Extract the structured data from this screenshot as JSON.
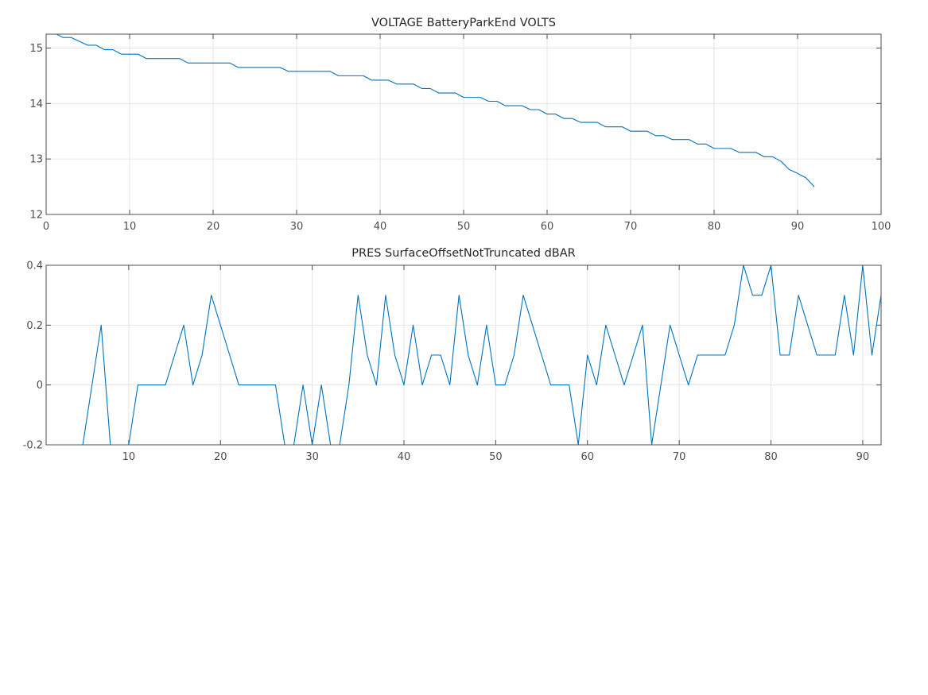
{
  "chart_data": [
    {
      "type": "line",
      "title": "VOLTAGE BatteryParkEnd VOLTS",
      "xlabel": "",
      "ylabel": "",
      "xlim": [
        0,
        100
      ],
      "ylim": [
        12,
        15.25
      ],
      "xticks": [
        0,
        10,
        20,
        30,
        40,
        50,
        60,
        70,
        80,
        90,
        100
      ],
      "yticks": [
        12,
        13,
        14,
        15
      ],
      "grid": true,
      "legend": "none",
      "color": "#0072bd",
      "series": [
        {
          "x": [
            1,
            2,
            3,
            4,
            5,
            6,
            7,
            8,
            9,
            10,
            11,
            12,
            13,
            14,
            15,
            16,
            17,
            18,
            19,
            20,
            21,
            22,
            23,
            24,
            25,
            26,
            27,
            28,
            29,
            30,
            31,
            32,
            33,
            34,
            35,
            36,
            37,
            38,
            39,
            40,
            41,
            42,
            43,
            44,
            45,
            46,
            47,
            48,
            49,
            50,
            51,
            52,
            53,
            54,
            55,
            56,
            57,
            58,
            59,
            60,
            61,
            62,
            63,
            64,
            65,
            66,
            67,
            68,
            69,
            70,
            71,
            72,
            73,
            74,
            75,
            76,
            77,
            78,
            79,
            80,
            81,
            82,
            83,
            84,
            85,
            86,
            87,
            88,
            89,
            90,
            91,
            92
          ],
          "values": [
            15.27,
            15.19,
            15.19,
            15.12,
            15.05,
            15.05,
            14.97,
            14.97,
            14.89,
            14.89,
            14.89,
            14.81,
            14.81,
            14.81,
            14.81,
            14.81,
            14.73,
            14.73,
            14.73,
            14.73,
            14.73,
            14.73,
            14.65,
            14.65,
            14.65,
            14.65,
            14.65,
            14.65,
            14.58,
            14.58,
            14.58,
            14.58,
            14.58,
            14.58,
            14.5,
            14.5,
            14.5,
            14.5,
            14.42,
            14.42,
            14.42,
            14.35,
            14.35,
            14.35,
            14.27,
            14.27,
            14.19,
            14.19,
            14.19,
            14.11,
            14.11,
            14.11,
            14.04,
            14.04,
            13.96,
            13.96,
            13.96,
            13.89,
            13.89,
            13.81,
            13.81,
            13.73,
            13.73,
            13.66,
            13.66,
            13.66,
            13.58,
            13.58,
            13.58,
            13.5,
            13.5,
            13.5,
            13.42,
            13.42,
            13.35,
            13.35,
            13.35,
            13.27,
            13.27,
            13.19,
            13.19,
            13.19,
            13.12,
            13.12,
            13.12,
            13.04,
            13.04,
            12.96,
            12.81,
            12.74,
            12.66,
            12.5
          ]
        }
      ]
    },
    {
      "type": "line",
      "title": "PRES SurfaceOffsetNotTruncated dBAR",
      "xlabel": "",
      "ylabel": "",
      "xlim": [
        1,
        92
      ],
      "ylim": [
        -0.2,
        0.4
      ],
      "xticks": [
        10,
        20,
        30,
        40,
        50,
        60,
        70,
        80,
        90
      ],
      "yticks": [
        -0.2,
        0,
        0.2,
        0.4
      ],
      "grid": true,
      "legend": "none",
      "color": "#0072bd",
      "series": [
        {
          "x": [
            1,
            2,
            3,
            4,
            5,
            6,
            7,
            8,
            9,
            10,
            11,
            12,
            13,
            14,
            15,
            16,
            17,
            18,
            19,
            20,
            21,
            22,
            23,
            24,
            25,
            26,
            27,
            28,
            29,
            30,
            31,
            32,
            33,
            34,
            35,
            36,
            37,
            38,
            39,
            40,
            41,
            42,
            43,
            44,
            45,
            46,
            47,
            48,
            49,
            50,
            51,
            52,
            53,
            54,
            55,
            56,
            57,
            58,
            59,
            60,
            61,
            62,
            63,
            64,
            65,
            66,
            67,
            68,
            69,
            70,
            71,
            72,
            73,
            74,
            75,
            76,
            77,
            78,
            79,
            80,
            81,
            82,
            83,
            84,
            85,
            86,
            87,
            88,
            89,
            90,
            91,
            92
          ],
          "values": [
            -0.2,
            -0.2,
            -0.2,
            -0.2,
            -0.2,
            0,
            0.2,
            -0.2,
            -0.2,
            -0.2,
            0,
            0,
            0,
            0,
            0.1,
            0.2,
            0,
            0.1,
            0.3,
            0.2,
            0.1,
            0,
            0,
            0,
            0,
            0,
            -0.2,
            -0.2,
            0,
            -0.2,
            0,
            -0.2,
            -0.2,
            0,
            0.3,
            0.1,
            0,
            0.3,
            0.1,
            0,
            0.2,
            0,
            0.1,
            0.1,
            0,
            0.3,
            0.1,
            0,
            0.2,
            0,
            0,
            0.1,
            0.3,
            0.2,
            0.1,
            0,
            0,
            0,
            -0.2,
            0.1,
            0,
            0.2,
            0.1,
            0,
            0.1,
            0.2,
            -0.2,
            0,
            0.2,
            0.1,
            0,
            0.1,
            0.1,
            0.1,
            0.1,
            0.2,
            0.4,
            0.3,
            0.3,
            0.4,
            0.1,
            0.1,
            0.3,
            0.2,
            0.1,
            0.1,
            0.1,
            0.3,
            0.1,
            0.4,
            0.1,
            0.3
          ]
        }
      ]
    }
  ]
}
